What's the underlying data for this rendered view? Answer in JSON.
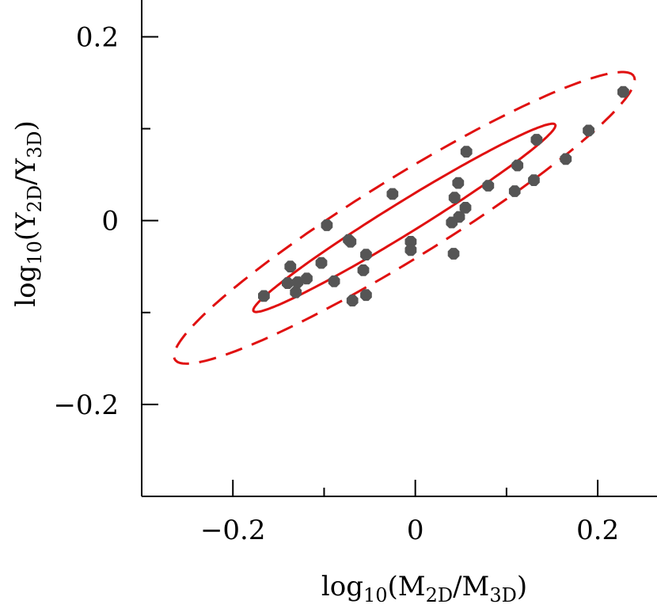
{
  "chart_data": {
    "type": "scatter",
    "xlabel": {
      "pre": "log",
      "sub1": "10",
      "open": "(M",
      "sub2": "2D",
      "mid": "/M",
      "sub3": "3D",
      "close": ")"
    },
    "ylabel": {
      "pre": "log",
      "sub1": "10",
      "open": "(Y",
      "sub2": "2D",
      "mid": "/Y",
      "sub3": "3D",
      "close": ")"
    },
    "xlim": [
      -0.3,
      0.265
    ],
    "ylim": [
      -0.3,
      0.24
    ],
    "x_ticks_major": [
      -0.2,
      0,
      0.2
    ],
    "x_tick_labels": [
      "−0.2",
      "0",
      "0.2"
    ],
    "y_ticks_major": [
      -0.2,
      0,
      0.2
    ],
    "y_tick_labels": [
      "−0.2",
      "0",
      "0.2"
    ],
    "x_ticks_minor": [
      -0.1,
      0.1
    ],
    "y_ticks_minor": [
      -0.1,
      0.1
    ],
    "marker_color": "#555555",
    "ellipse_color": "#e01010",
    "points": [
      {
        "x": -0.166,
        "y": -0.082
      },
      {
        "x": -0.14,
        "y": -0.068
      },
      {
        "x": -0.137,
        "y": -0.05
      },
      {
        "x": -0.131,
        "y": -0.078
      },
      {
        "x": -0.129,
        "y": -0.067
      },
      {
        "x": -0.119,
        "y": -0.063
      },
      {
        "x": -0.103,
        "y": -0.046
      },
      {
        "x": -0.097,
        "y": -0.005
      },
      {
        "x": -0.089,
        "y": -0.066
      },
      {
        "x": -0.073,
        "y": -0.021
      },
      {
        "x": -0.071,
        "y": -0.023
      },
      {
        "x": -0.069,
        "y": -0.087
      },
      {
        "x": -0.057,
        "y": -0.054
      },
      {
        "x": -0.054,
        "y": -0.037
      },
      {
        "x": -0.054,
        "y": -0.081
      },
      {
        "x": -0.025,
        "y": 0.029
      },
      {
        "x": -0.005,
        "y": -0.023
      },
      {
        "x": -0.005,
        "y": -0.032
      },
      {
        "x": 0.04,
        "y": -0.002
      },
      {
        "x": 0.042,
        "y": -0.036
      },
      {
        "x": 0.043,
        "y": 0.025
      },
      {
        "x": 0.047,
        "y": 0.041
      },
      {
        "x": 0.048,
        "y": 0.004
      },
      {
        "x": 0.055,
        "y": 0.014
      },
      {
        "x": 0.056,
        "y": 0.075
      },
      {
        "x": 0.08,
        "y": 0.038
      },
      {
        "x": 0.109,
        "y": 0.032
      },
      {
        "x": 0.112,
        "y": 0.06
      },
      {
        "x": 0.13,
        "y": 0.044
      },
      {
        "x": 0.133,
        "y": 0.088
      },
      {
        "x": 0.165,
        "y": 0.067
      },
      {
        "x": 0.19,
        "y": 0.098
      },
      {
        "x": 0.228,
        "y": 0.14
      }
    ],
    "ellipses": [
      {
        "name": "inner-1sigma",
        "style": "solid",
        "center": [
          -0.012,
          0.003
        ],
        "semi_major": 0.194,
        "semi_minor": 0.017,
        "angle_deg": 31.5
      },
      {
        "name": "outer-2sigma",
        "style": "dashed",
        "center": [
          -0.012,
          0.003
        ],
        "semi_major": 0.295,
        "semi_minor": 0.044,
        "angle_deg": 31.5
      }
    ]
  }
}
